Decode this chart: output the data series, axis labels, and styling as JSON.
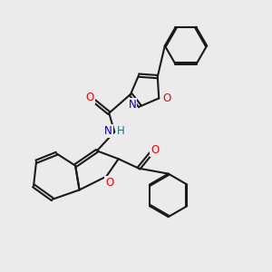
{
  "bg_color": "#ebebeb",
  "bond_color": "#1a1a1a",
  "bond_width": 1.5,
  "atom_colors": {
    "O": "#ff0000",
    "N": "#0000cc",
    "H": "#008080",
    "C": "#1a1a1a"
  },
  "font_size": 8.5,
  "dbo": 0.055
}
